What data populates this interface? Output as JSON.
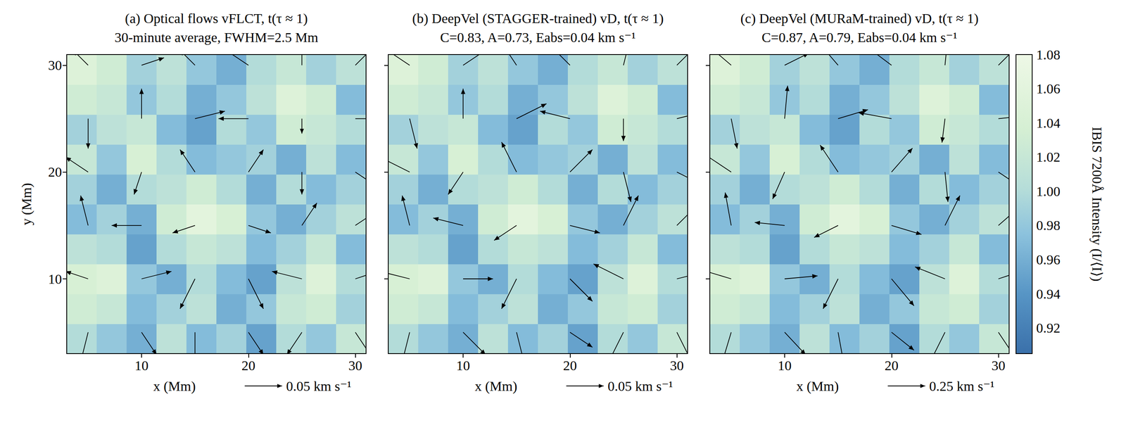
{
  "chart_data": [
    {
      "type": "quiver",
      "title": "(a) Optical flows vFLCT, t(τ ≈ 1)",
      "subtitle": "30-minute average, FWHM=2.5 Mm",
      "xlabel": "x (Mm)",
      "ylabel": "y (Mm)",
      "xlim": [
        3,
        31
      ],
      "ylim": [
        3,
        31
      ],
      "xticks": [
        10,
        20,
        30
      ],
      "yticks": [
        10,
        20,
        30
      ],
      "tick_labels": true,
      "quiver_key": {
        "value": 0.05,
        "label": "0.05 km s⁻¹"
      },
      "vectors": {
        "x": [
          5,
          10,
          15,
          20,
          25,
          30
        ],
        "y": [
          5,
          10,
          15,
          20,
          25,
          30
        ],
        "u": [
          [
            -0.01,
            0.02,
            0.0,
            0.02,
            -0.02,
            0.02
          ],
          [
            -0.03,
            0.04,
            -0.02,
            0.02,
            -0.04,
            0.03
          ],
          [
            -0.01,
            -0.04,
            -0.03,
            0.03,
            0.02,
            0.03
          ],
          [
            -0.03,
            -0.01,
            -0.02,
            0.02,
            0.0,
            0.03
          ],
          [
            0.0,
            0.0,
            0.04,
            -0.04,
            0.0,
            0.04
          ],
          [
            -0.02,
            0.03,
            -0.02,
            -0.03,
            0.0,
            0.03
          ]
        ],
        "v": [
          [
            -0.04,
            -0.03,
            -0.04,
            -0.03,
            -0.03,
            -0.03
          ],
          [
            0.01,
            0.01,
            -0.04,
            -0.04,
            0.01,
            0.01
          ],
          [
            0.04,
            0.0,
            -0.01,
            -0.01,
            0.03,
            0.02
          ],
          [
            0.02,
            -0.03,
            0.03,
            0.03,
            -0.03,
            -0.02
          ],
          [
            -0.04,
            0.04,
            0.01,
            0.0,
            -0.02,
            0.0
          ],
          [
            0.02,
            0.01,
            0.02,
            0.02,
            0.04,
            0.03
          ]
        ]
      }
    },
    {
      "type": "quiver",
      "title": "(b) DeepVel (STAGGER-trained) vD, t(τ ≈ 1)",
      "subtitle": "C=0.83, A=0.73, Eabs=0.04 km s⁻¹",
      "xlabel": "x (Mm)",
      "xlim": [
        3,
        31
      ],
      "ylim": [
        3,
        31
      ],
      "xticks": [
        10,
        20,
        30
      ],
      "yticks": [
        10,
        20,
        30
      ],
      "tick_labels": "x",
      "quiver_key": {
        "value": 0.05,
        "label": "0.05 km s⁻¹"
      },
      "vectors": {
        "x": [
          5,
          10,
          15,
          20,
          25,
          30
        ],
        "y": [
          5,
          10,
          15,
          20,
          25,
          30
        ],
        "u": [
          [
            -0.01,
            0.03,
            0.01,
            0.03,
            -0.02,
            0.02
          ],
          [
            -0.04,
            0.04,
            -0.02,
            0.03,
            -0.04,
            0.04
          ],
          [
            -0.01,
            -0.04,
            -0.03,
            0.04,
            0.02,
            0.03
          ],
          [
            -0.04,
            -0.02,
            -0.02,
            0.03,
            0.01,
            0.04
          ],
          [
            0.01,
            0.0,
            0.04,
            -0.04,
            0.0,
            0.04
          ],
          [
            -0.03,
            0.03,
            -0.02,
            -0.03,
            0.01,
            0.03
          ]
        ],
        "v": [
          [
            -0.04,
            -0.03,
            -0.04,
            -0.02,
            -0.04,
            -0.04
          ],
          [
            0.01,
            0.0,
            -0.04,
            -0.03,
            0.02,
            0.01
          ],
          [
            0.04,
            0.01,
            -0.02,
            -0.01,
            0.04,
            0.03
          ],
          [
            0.02,
            -0.03,
            0.04,
            0.03,
            -0.04,
            -0.02
          ],
          [
            -0.04,
            0.04,
            0.02,
            0.01,
            -0.03,
            0.01
          ],
          [
            0.02,
            0.02,
            0.03,
            0.03,
            0.04,
            0.03
          ]
        ]
      }
    },
    {
      "type": "quiver",
      "title": "(c) DeepVel (MURaM-trained) vD, t(τ ≈ 1)",
      "subtitle": "C=0.87, A=0.79, Eabs=0.04 km s⁻¹",
      "xlabel": "x (Mm)",
      "xlim": [
        3,
        31
      ],
      "ylim": [
        3,
        31
      ],
      "xticks": [
        10,
        20,
        30
      ],
      "yticks": [
        10,
        20,
        30
      ],
      "tick_labels": "x",
      "quiver_key": {
        "value": 0.25,
        "label": "0.25 km s⁻¹"
      },
      "vectors": {
        "x": [
          5,
          10,
          15,
          20,
          25,
          30
        ],
        "y": [
          5,
          10,
          15,
          20,
          25,
          30
        ],
        "u": [
          [
            -0.06,
            0.14,
            0.04,
            0.15,
            -0.1,
            0.12
          ],
          [
            -0.2,
            0.22,
            -0.1,
            0.15,
            -0.2,
            0.18
          ],
          [
            -0.04,
            -0.2,
            -0.16,
            0.2,
            0.1,
            0.16
          ],
          [
            -0.18,
            -0.08,
            -0.12,
            0.14,
            0.02,
            0.18
          ],
          [
            0.04,
            0.02,
            0.2,
            -0.22,
            -0.02,
            0.2
          ],
          [
            -0.14,
            0.16,
            -0.12,
            -0.16,
            0.02,
            0.16
          ]
        ],
        "v": [
          [
            -0.2,
            -0.15,
            -0.22,
            -0.12,
            -0.2,
            -0.18
          ],
          [
            0.06,
            0.02,
            -0.2,
            -0.18,
            0.08,
            0.06
          ],
          [
            0.22,
            0.02,
            -0.08,
            -0.06,
            0.2,
            0.14
          ],
          [
            0.12,
            -0.18,
            0.18,
            0.16,
            -0.2,
            -0.12
          ],
          [
            -0.2,
            0.22,
            0.06,
            0.04,
            -0.16,
            0.02
          ],
          [
            0.12,
            0.08,
            0.14,
            0.12,
            0.2,
            0.16
          ]
        ]
      }
    }
  ],
  "intensity": {
    "x": [
      4.4,
      7.2,
      10,
      12.8,
      15.6,
      18.4,
      21.2,
      24,
      26.8,
      29.6
    ],
    "y": [
      4.4,
      7.2,
      10,
      12.8,
      15.6,
      18.4,
      21.2,
      24,
      26.8,
      29.6
    ],
    "values": [
      [
        1.0,
        0.98,
        0.96,
        1.01,
        0.97,
        0.99,
        0.95,
        1.0,
        0.98,
        1.02
      ],
      [
        1.03,
        1.02,
        0.97,
        0.99,
        1.01,
        0.96,
        0.98,
        1.02,
        1.03,
        0.99
      ],
      [
        1.04,
        1.05,
        0.98,
        0.96,
        1.0,
        0.97,
        0.95,
        1.01,
        1.05,
        1.0
      ],
      [
        1.01,
        1.0,
        0.95,
        1.0,
        1.02,
        1.01,
        0.97,
        0.99,
        1.02,
        0.97
      ],
      [
        0.97,
        0.99,
        0.96,
        1.03,
        1.06,
        1.04,
        0.98,
        0.96,
        0.99,
        1.01
      ],
      [
        0.99,
        0.96,
        1.0,
        1.01,
        1.03,
        1.0,
        0.96,
        1.0,
        0.97,
        0.99
      ],
      [
        1.02,
        0.98,
        1.04,
        1.0,
        0.97,
        0.98,
        0.99,
        0.96,
        1.01,
        0.97
      ],
      [
        0.99,
        1.01,
        1.02,
        0.97,
        0.95,
        1.0,
        0.98,
        1.03,
        1.02,
        1.0
      ],
      [
        1.03,
        1.02,
        0.98,
        1.0,
        0.96,
        0.98,
        1.01,
        1.05,
        1.03,
        0.97
      ],
      [
        1.05,
        1.03,
        0.99,
        1.01,
        0.98,
        0.96,
        1.0,
        1.02,
        0.99,
        1.01
      ]
    ],
    "colorbar": {
      "label": "IBIS 7200Å Intensity (I/⟨I⟩)",
      "range": [
        0.905,
        1.08
      ],
      "ticks": [
        0.92,
        0.94,
        0.96,
        0.98,
        {
          "value": 1,
          "label": "1.00"
        },
        1.02,
        1.04,
        1.06,
        1.08
      ]
    }
  }
}
